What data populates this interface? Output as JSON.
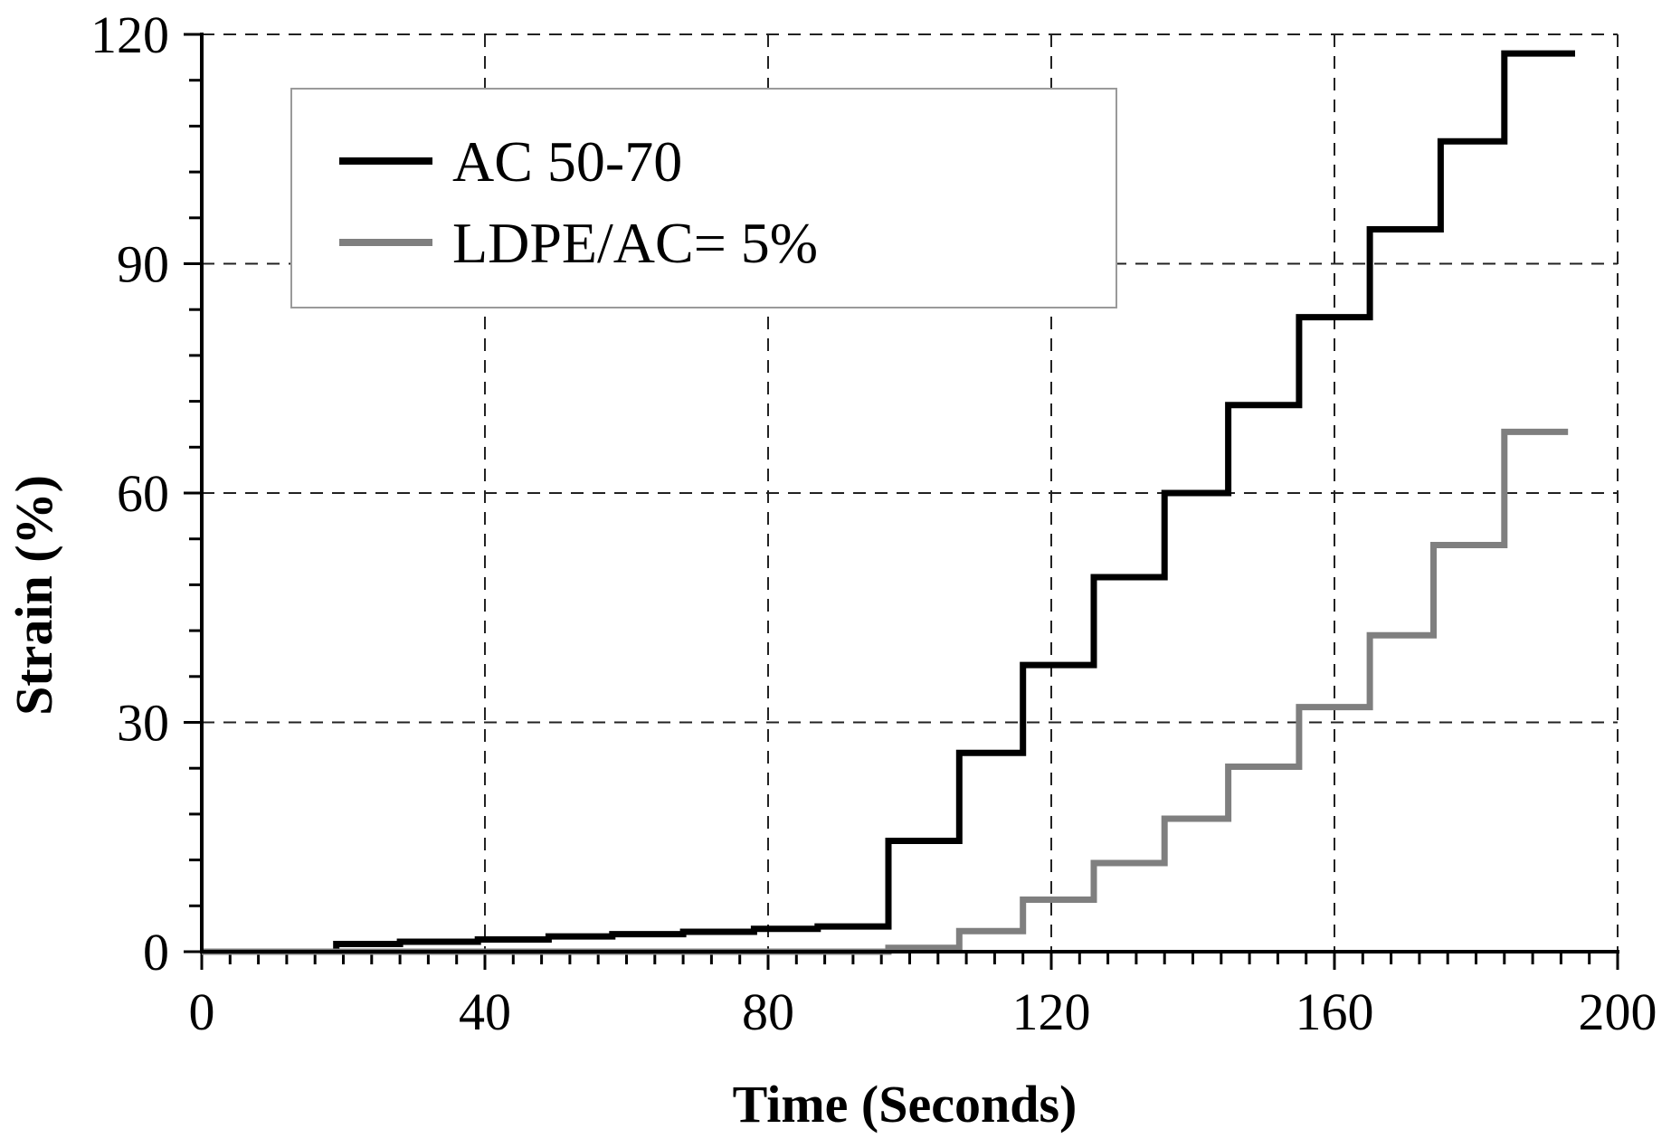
{
  "chart_data": {
    "type": "line",
    "title": "",
    "xlabel": "Time (Seconds)",
    "ylabel": "Strain (%)",
    "xlim": [
      0,
      200
    ],
    "ylim": [
      0,
      120
    ],
    "xticks": [
      0,
      40,
      80,
      120,
      160,
      200
    ],
    "yticks": [
      0,
      30,
      60,
      90,
      120
    ],
    "grid": true,
    "legend_position": "top-left",
    "series": [
      {
        "name": "AC 50-70",
        "color": "#000000",
        "x": [
          10,
          19,
          19,
          28,
          28,
          39,
          39,
          49,
          49,
          58,
          58,
          68,
          68,
          78,
          78,
          87,
          87,
          97,
          97,
          107,
          107,
          116,
          116,
          126,
          126,
          136,
          136,
          145,
          145,
          155,
          155,
          165,
          165,
          175,
          175,
          184,
          184,
          194
        ],
        "y": [
          0,
          0,
          1,
          1,
          1.3,
          1.3,
          1.6,
          1.6,
          2,
          2,
          2.3,
          2.3,
          2.6,
          2.6,
          3,
          3,
          3.3,
          3.3,
          14.5,
          14.5,
          26,
          26,
          37.5,
          37.5,
          49,
          49,
          60,
          60,
          71.5,
          71.5,
          83,
          83,
          94.5,
          94.5,
          106,
          106,
          117.5,
          117.5
        ]
      },
      {
        "name": "LDPE/AC= 5%",
        "color": "#7f7f7f",
        "x": [
          0,
          97,
          97,
          107,
          107,
          116,
          116,
          126,
          126,
          136,
          136,
          145,
          145,
          155,
          155,
          165,
          165,
          174,
          174,
          184,
          184,
          193
        ],
        "y": [
          0,
          0,
          0.5,
          0.5,
          2.7,
          2.7,
          6.8,
          6.8,
          11.6,
          11.6,
          17.4,
          17.4,
          24.2,
          24.2,
          32,
          32,
          41.4,
          41.4,
          53.2,
          53.2,
          68,
          68
        ]
      }
    ]
  }
}
